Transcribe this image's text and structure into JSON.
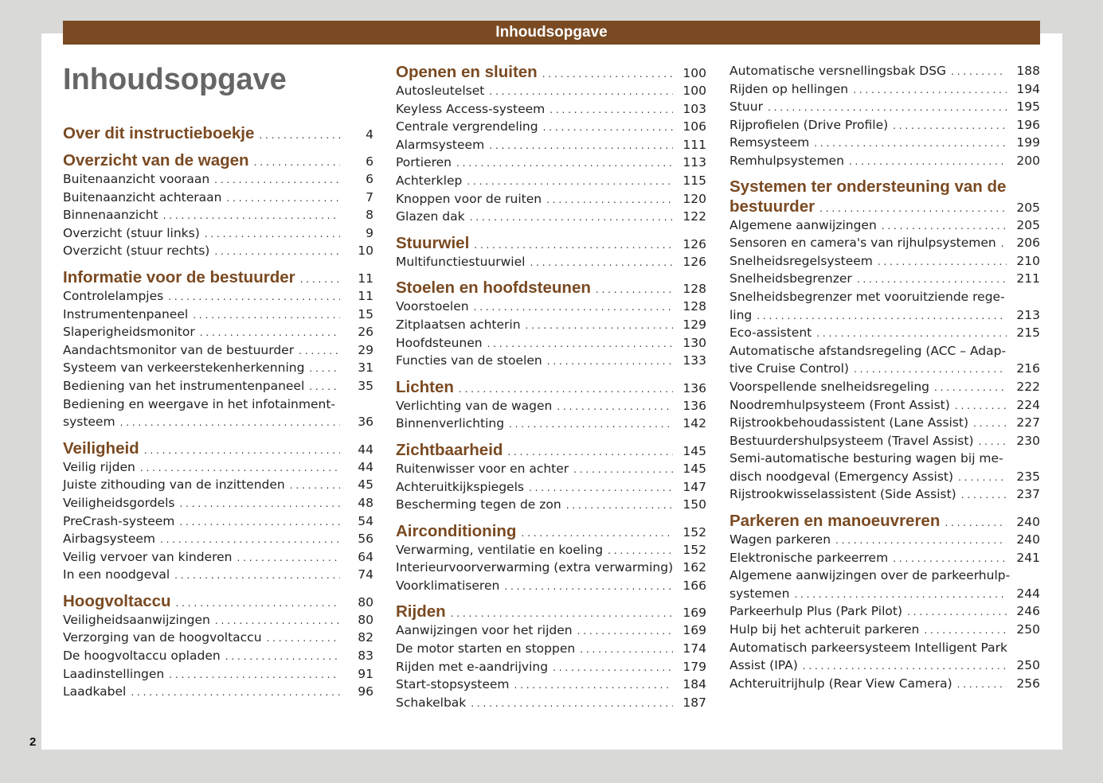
{
  "header": {
    "bar_title": "Inhoudsopgave",
    "page_title": "Inhoudsopgave",
    "page_number": "2"
  },
  "colors": {
    "accent": "#7a4a22",
    "title_gray": "#666666",
    "background": "#d9d9d7"
  },
  "columns": [
    [
      {
        "title": "Over dit instructieboekje",
        "page": "4",
        "heading": true
      },
      {
        "title": "Overzicht van de wagen",
        "page": "6",
        "heading": true
      },
      {
        "title": "Buitenaanzicht vooraan",
        "page": "6"
      },
      {
        "title": "Buitenaanzicht achteraan",
        "page": "7"
      },
      {
        "title": "Binnenaanzicht",
        "page": "8"
      },
      {
        "title": "Overzicht (stuur links)",
        "page": "9"
      },
      {
        "title": "Overzicht (stuur rechts)",
        "page": "10"
      },
      {
        "title": "Informatie voor de bestuurder",
        "page": "11",
        "heading": true
      },
      {
        "title": "Controlelampjes",
        "page": "11"
      },
      {
        "title": "Instrumentenpaneel",
        "page": "15"
      },
      {
        "title": "Slaperigheidsmonitor",
        "page": "26"
      },
      {
        "title": "Aandachtsmonitor van de bestuurder",
        "page": "29"
      },
      {
        "title": "Systeem van verkeerstekenherkenning",
        "page": "31"
      },
      {
        "title": "Bediening van het instrumentenpaneel",
        "page": "35"
      },
      {
        "pre": "Bediening en weergave in het infotainment-",
        "title": "systeem",
        "page": "36"
      },
      {
        "title": "Veiligheid",
        "page": "44",
        "heading": true
      },
      {
        "title": "Veilig rijden",
        "page": "44"
      },
      {
        "title": "Juiste zithouding van de inzittenden",
        "page": "45"
      },
      {
        "title": "Veiligheidsgordels",
        "page": "48"
      },
      {
        "title": "PreCrash-systeem",
        "page": "54"
      },
      {
        "title": "Airbagsysteem",
        "page": "56"
      },
      {
        "title": "Veilig vervoer van kinderen",
        "page": "64"
      },
      {
        "title": "In een noodgeval",
        "page": "74"
      },
      {
        "title": "Hoogvoltaccu",
        "page": "80",
        "heading": true
      },
      {
        "title": "Veiligheidsaanwijzingen",
        "page": "80"
      },
      {
        "title": "Verzorging van de hoogvoltaccu",
        "page": "82"
      },
      {
        "title": "De hoogvoltaccu opladen",
        "page": "83"
      },
      {
        "title": "Laadinstellingen",
        "page": "91"
      },
      {
        "title": "Laadkabel",
        "page": "96"
      }
    ],
    [
      {
        "title": "Openen en sluiten",
        "page": "100",
        "heading": true
      },
      {
        "title": "Autosleutelset",
        "page": "100"
      },
      {
        "title": "Keyless Access-systeem",
        "page": "103"
      },
      {
        "title": "Centrale vergrendeling",
        "page": "106"
      },
      {
        "title": "Alarmsysteem",
        "page": "111"
      },
      {
        "title": "Portieren",
        "page": "113"
      },
      {
        "title": "Achterklep",
        "page": "115"
      },
      {
        "title": "Knoppen voor de ruiten",
        "page": "120"
      },
      {
        "title": "Glazen dak",
        "page": "122"
      },
      {
        "title": "Stuurwiel",
        "page": "126",
        "heading": true
      },
      {
        "title": "Multifunctiestuurwiel",
        "page": "126"
      },
      {
        "title": "Stoelen en hoofdsteunen",
        "page": "128",
        "heading": true
      },
      {
        "title": "Voorstoelen",
        "page": "128"
      },
      {
        "title": "Zitplaatsen achterin",
        "page": "129"
      },
      {
        "title": "Hoofdsteunen",
        "page": "130"
      },
      {
        "title": "Functies van de stoelen",
        "page": "133"
      },
      {
        "title": "Lichten",
        "page": "136",
        "heading": true
      },
      {
        "title": "Verlichting van de wagen",
        "page": "136"
      },
      {
        "title": "Binnenverlichting",
        "page": "142"
      },
      {
        "title": "Zichtbaarheid",
        "page": "145",
        "heading": true
      },
      {
        "title": "Ruitenwisser voor en achter",
        "page": "145"
      },
      {
        "title": "Achteruitkijkspiegels",
        "page": "147"
      },
      {
        "title": "Bescherming tegen de zon",
        "page": "150"
      },
      {
        "title": "Airconditioning",
        "page": "152",
        "heading": true
      },
      {
        "title": "Verwarming, ventilatie en koeling",
        "page": "152"
      },
      {
        "title": "Interieurvoorverwarming (extra verwarming)",
        "page": "162"
      },
      {
        "title": "Voorklimatiseren",
        "page": "166"
      },
      {
        "title": "Rijden",
        "page": "169",
        "heading": true
      },
      {
        "title": "Aanwijzingen voor het rijden",
        "page": "169"
      },
      {
        "title": "De motor starten en stoppen",
        "page": "174"
      },
      {
        "title": "Rijden met e-aandrijving",
        "page": "179"
      },
      {
        "title": "Start-stopsysteem",
        "page": "184"
      },
      {
        "title": "Schakelbak",
        "page": "187"
      }
    ],
    [
      {
        "title": "Automatische versnellingsbak DSG",
        "page": "188"
      },
      {
        "title": "Rijden op hellingen",
        "page": "194"
      },
      {
        "title": "Stuur",
        "page": "195"
      },
      {
        "title": "Rijprofielen (Drive Profile)",
        "page": "196"
      },
      {
        "title": "Remsysteem",
        "page": "199"
      },
      {
        "title": "Remhulpsystemen",
        "page": "200"
      },
      {
        "pre": "Systemen ter ondersteuning van de",
        "title": "bestuurder",
        "page": "205",
        "heading": true
      },
      {
        "title": "Algemene aanwijzingen",
        "page": "205"
      },
      {
        "title": "Sensoren en camera's van rijhulpsystemen",
        "page": "206"
      },
      {
        "title": "Snelheidsregelsysteem",
        "page": "210"
      },
      {
        "title": "Snelheidsbegrenzer",
        "page": "211"
      },
      {
        "pre": "Snelheidsbegrenzer met vooruitziende rege-",
        "title": "ling",
        "page": "213"
      },
      {
        "title": "Eco-assistent",
        "page": "215"
      },
      {
        "pre": "Automatische afstandsregeling (ACC – Adap-",
        "title": "tive Cruise Control)",
        "page": "216"
      },
      {
        "title": "Voorspellende snelheidsregeling",
        "page": "222"
      },
      {
        "title": "Noodremhulpsysteem (Front Assist)",
        "page": "224"
      },
      {
        "title": "Rijstrookbehoudassistent (Lane Assist)",
        "page": "227"
      },
      {
        "title": "Bestuurdershulpsysteem (Travel Assist)",
        "page": "230"
      },
      {
        "pre": "Semi-automatische besturing wagen bij me-",
        "title": "disch noodgeval (Emergency Assist)",
        "page": "235"
      },
      {
        "title": "Rijstrookwisselassistent (Side Assist)",
        "page": "237"
      },
      {
        "title": "Parkeren en manoeuvreren",
        "page": "240",
        "heading": true
      },
      {
        "title": "Wagen parkeren",
        "page": "240"
      },
      {
        "title": "Elektronische parkeerrem",
        "page": "241"
      },
      {
        "pre": "Algemene aanwijzingen over de parkeerhulp-",
        "title": "systemen",
        "page": "244"
      },
      {
        "title": "Parkeerhulp Plus (Park Pilot)",
        "page": "246"
      },
      {
        "title": "Hulp bij het achteruit parkeren",
        "page": "250"
      },
      {
        "pre": "Automatisch parkeersysteem Intelligent Park",
        "title": "Assist (IPA)",
        "page": "250"
      },
      {
        "title": "Achteruitrijhulp (Rear View Camera)",
        "page": "256"
      }
    ]
  ]
}
